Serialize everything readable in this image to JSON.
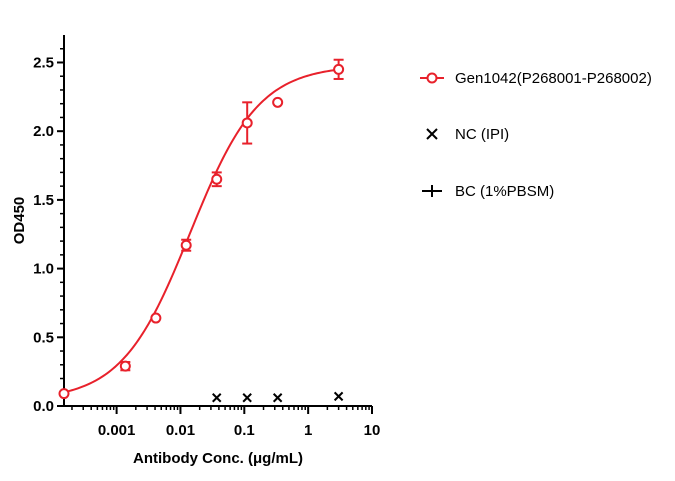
{
  "chart_data": {
    "type": "scatter",
    "title": "",
    "xlabel": "Antibody Conc. (μg/mL)",
    "ylabel": "OD450",
    "x_scale": "log",
    "xlim": [
      0.00015,
      10
    ],
    "ylim": [
      0,
      2.7
    ],
    "x_ticks": [
      0.001,
      0.01,
      0.1,
      1,
      10
    ],
    "x_tick_labels": [
      "0.001",
      "0.01",
      "0.1",
      "1",
      "10"
    ],
    "y_ticks": [
      0.0,
      0.5,
      1.0,
      1.5,
      2.0,
      2.5
    ],
    "y_tick_labels": [
      "0.0",
      "0.5",
      "1.0",
      "1.5",
      "2.0",
      "2.5"
    ],
    "grid": false,
    "legend_position": "right",
    "series": [
      {
        "name": "Gen1042(P268001-P268002)",
        "color": "#e8212b",
        "marker": "open-circle",
        "fit_curve": "4PL",
        "x": [
          0.00015,
          0.00137,
          0.00412,
          0.0123,
          0.037,
          0.111,
          0.333,
          3.0
        ],
        "y": [
          0.09,
          0.29,
          0.64,
          1.17,
          1.65,
          2.06,
          2.21,
          2.45
        ],
        "err": [
          0.01,
          0.03,
          0.01,
          0.04,
          0.05,
          0.15,
          0.01,
          0.07
        ]
      },
      {
        "name": "NC (IPI)",
        "color": "#000000",
        "marker": "x",
        "x": [
          0.037,
          0.111,
          0.333,
          3.0
        ],
        "y": [
          0.06,
          0.06,
          0.06,
          0.07
        ],
        "err": []
      },
      {
        "name": "BC (1%PBSM)",
        "color": "#000000",
        "marker": "plus",
        "x": [],
        "y": [],
        "err": []
      }
    ]
  }
}
